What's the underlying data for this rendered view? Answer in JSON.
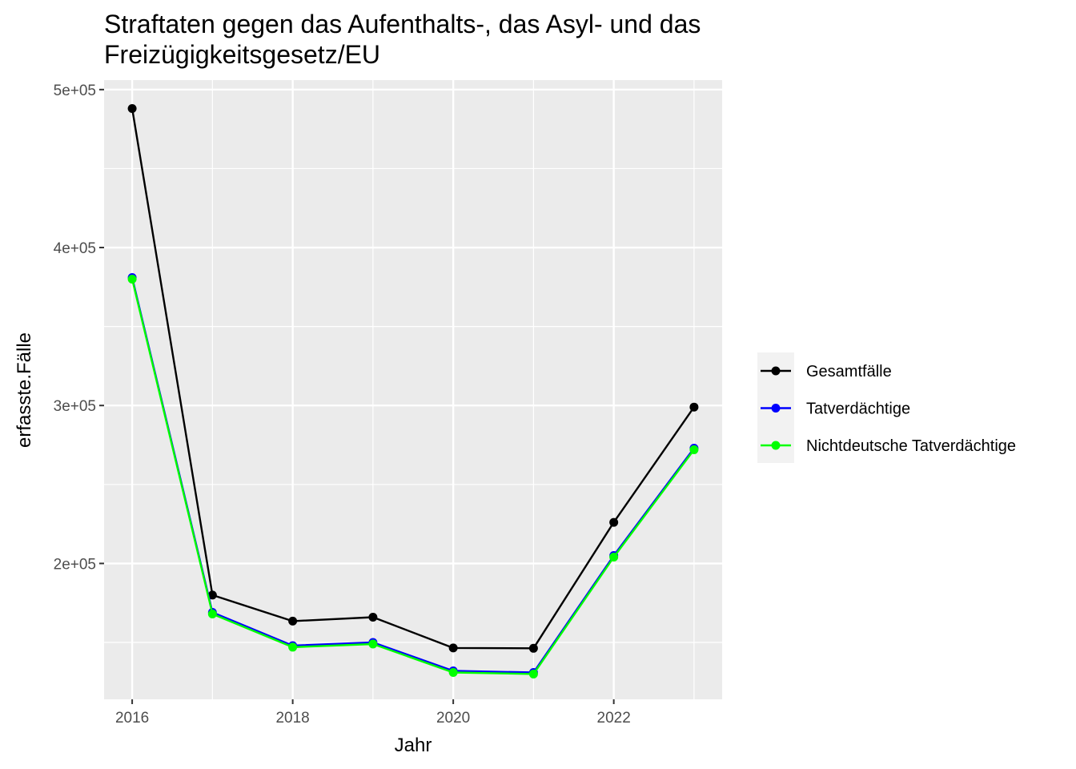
{
  "chart_data": {
    "type": "line",
    "title_lines": [
      "Straftaten gegen das Aufenthalts-, das Asyl- und das",
      "Freizügigkeitsgesetz/EU"
    ],
    "xlabel": "Jahr",
    "ylabel": "erfasste.Fälle",
    "x": [
      2016,
      2017,
      2018,
      2019,
      2020,
      2021,
      2022,
      2023
    ],
    "xlim": [
      2015.65,
      2023.35
    ],
    "ylim": [
      114000,
      506000
    ],
    "x_ticks": [
      2016,
      2018,
      2020,
      2022
    ],
    "x_tick_labels": [
      "2016",
      "2018",
      "2020",
      "2022"
    ],
    "y_ticks": [
      200000,
      300000,
      400000,
      500000
    ],
    "y_tick_labels": [
      "2e+05",
      "3e+05",
      "4e+05",
      "5e+05"
    ],
    "y_minor_ticks": [
      150000,
      250000,
      350000,
      450000
    ],
    "grid": true,
    "legend_position": "right",
    "series": [
      {
        "name": "Gesamtfälle",
        "color": "#000000",
        "values": [
          488000,
          180000,
          163500,
          166000,
          146500,
          146300,
          226000,
          299000
        ]
      },
      {
        "name": "Tatverdächtige",
        "color": "#0000ff",
        "values": [
          381000,
          169000,
          148000,
          150000,
          132000,
          131000,
          205000,
          273000
        ]
      },
      {
        "name": "Nichtdeutsche Tatverdächtige",
        "color": "#00ff00",
        "values": [
          380000,
          168000,
          147000,
          149000,
          131000,
          130000,
          204000,
          272000
        ]
      }
    ]
  }
}
